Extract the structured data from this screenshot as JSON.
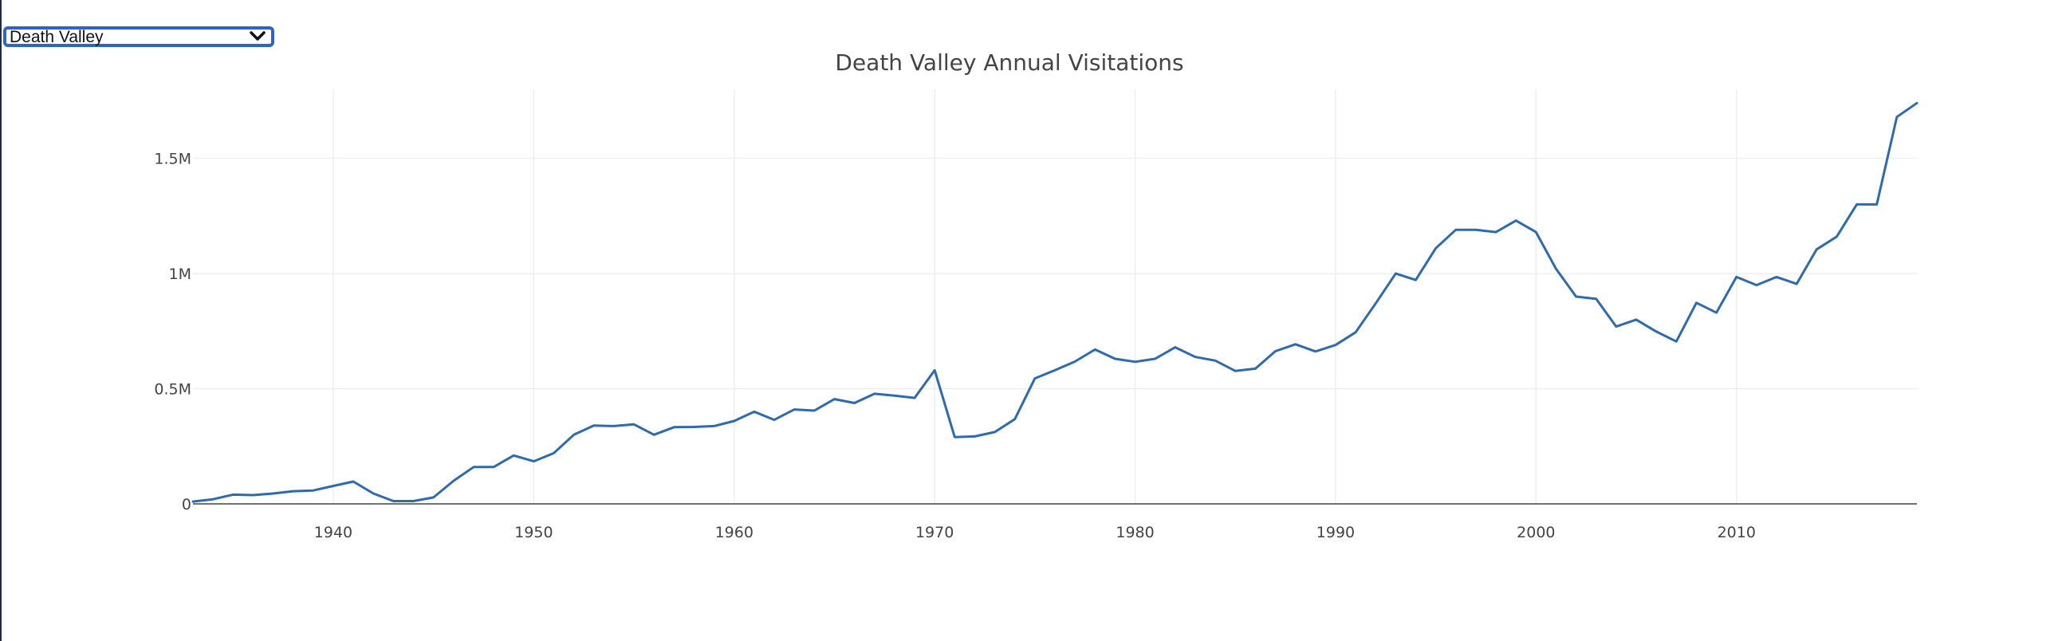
{
  "selector": {
    "selected": "Death Valley"
  },
  "chart_data": {
    "type": "line",
    "title": "Death Valley Annual Visitations",
    "xlabel": "",
    "ylabel": "",
    "xlim": [
      1933,
      2019
    ],
    "ylim": [
      0,
      1800000
    ],
    "grid": true,
    "x_ticks": [
      1940,
      1950,
      1960,
      1970,
      1980,
      1990,
      2000,
      2010
    ],
    "x_tick_labels": [
      "1940",
      "1950",
      "1960",
      "1970",
      "1980",
      "1990",
      "2000",
      "2010"
    ],
    "y_ticks": [
      0,
      500000,
      1000000,
      1500000
    ],
    "y_tick_labels": [
      "0",
      "0.5M",
      "1M",
      "1.5M"
    ],
    "series": [
      {
        "color": "#2e6aad",
        "x": [
          1933,
          1934,
          1935,
          1936,
          1937,
          1938,
          1939,
          1940,
          1941,
          1942,
          1943,
          1944,
          1945,
          1946,
          1947,
          1948,
          1949,
          1950,
          1951,
          1952,
          1953,
          1954,
          1955,
          1956,
          1957,
          1958,
          1959,
          1960,
          1961,
          1962,
          1963,
          1964,
          1965,
          1966,
          1967,
          1968,
          1969,
          1970,
          1971,
          1972,
          1973,
          1974,
          1975,
          1976,
          1977,
          1978,
          1979,
          1980,
          1981,
          1982,
          1983,
          1984,
          1985,
          1986,
          1987,
          1988,
          1989,
          1990,
          1991,
          1992,
          1993,
          1994,
          1995,
          1996,
          1997,
          1998,
          1999,
          2000,
          2001,
          2002,
          2003,
          2004,
          2005,
          2006,
          2007,
          2008,
          2009,
          2010,
          2011,
          2012,
          2013,
          2014,
          2015,
          2016,
          2017,
          2018,
          2019
        ],
        "y": [
          10000,
          20000,
          40000,
          38000,
          45000,
          55000,
          58000,
          78000,
          97000,
          45000,
          12000,
          12000,
          28000,
          100000,
          160000,
          160000,
          210000,
          185000,
          220000,
          300000,
          340000,
          338000,
          345000,
          300000,
          333000,
          334000,
          338000,
          360000,
          400000,
          365000,
          410000,
          405000,
          455000,
          438000,
          478000,
          470000,
          460000,
          580000,
          290000,
          293000,
          312000,
          368000,
          545000,
          580000,
          618000,
          670000,
          630000,
          617000,
          630000,
          680000,
          638000,
          622000,
          577000,
          587000,
          663000,
          693000,
          662000,
          690000,
          745000,
          870000,
          1000000,
          972000,
          1110000,
          1190000,
          1190000,
          1180000,
          1230000,
          1180000,
          1020000,
          900000,
          890000,
          770000,
          800000,
          748000,
          705000,
          873000,
          830000,
          985000,
          950000,
          985000,
          955000,
          1105000,
          1160000,
          1300000,
          1300000,
          1680000,
          1740000
        ]
      }
    ]
  }
}
